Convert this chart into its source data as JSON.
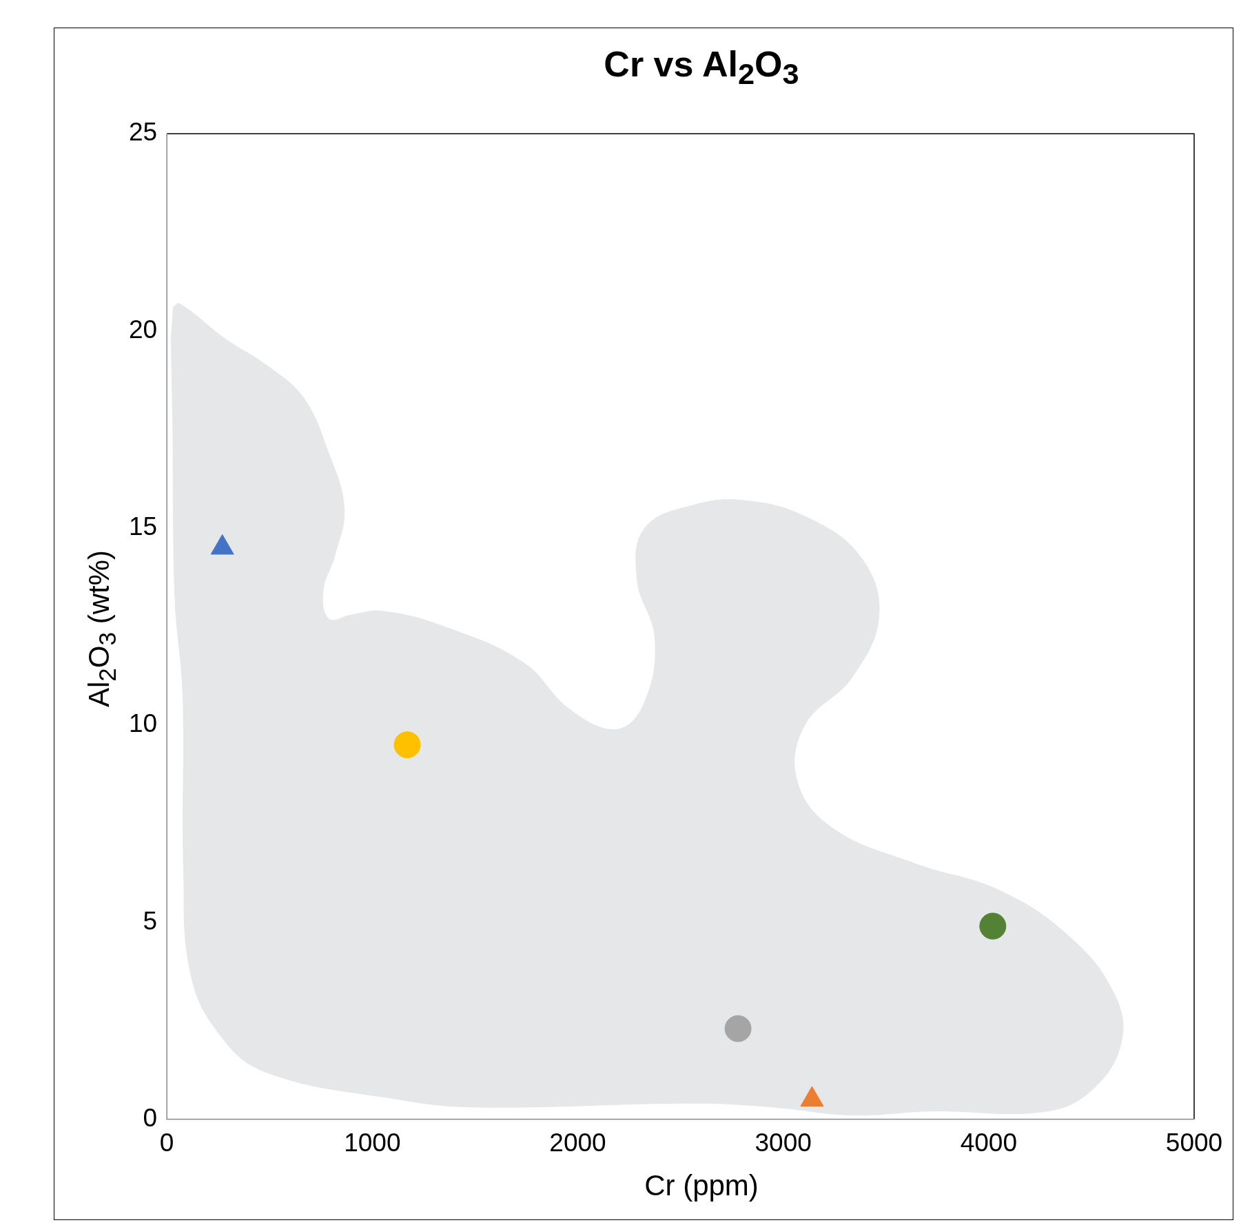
{
  "chart_data": {
    "type": "scatter",
    "title": "Cr vs Al$_{2}$O$_{3}$",
    "xlabel": "Cr (ppm)",
    "ylabel": "Al$_{2}$O$_{3}$ (wt%)",
    "xlim": [
      0,
      5000
    ],
    "xticks": [
      0,
      1000,
      2000,
      3000,
      4000,
      5000
    ],
    "ylim": [
      0,
      25
    ],
    "yticks": [
      0,
      5,
      10,
      15,
      20,
      25
    ],
    "grid": false,
    "legend": false,
    "series": [
      {
        "type": "area",
        "color": "#e6e7e8",
        "x": [
          30,
          61,
          286,
          495,
          667,
          789,
          865,
          819,
          762,
          789,
          896,
          1048,
          1353,
          1734,
          1963,
          2191,
          2325,
          2374,
          2287,
          2325,
          2572,
          2820,
          3106,
          3373,
          3468,
          3335,
          3106,
          3068,
          3239,
          3639,
          4059,
          4402,
          4611,
          4649,
          4516,
          4287,
          3716,
          3335,
          2953,
          2572,
          1505,
          1124,
          476,
          248,
          114,
          80,
          76,
          38,
          27,
          19
        ],
        "values": [
          20.6,
          20.7,
          19.8,
          19.1,
          18.3,
          16.9,
          15.5,
          14.3,
          13.4,
          12.7,
          12.8,
          12.9,
          12.5,
          11.6,
          10.4,
          9.9,
          10.6,
          12.2,
          13.7,
          15.0,
          15.6,
          15.7,
          15.3,
          14.3,
          12.8,
          11.2,
          10.0,
          8.6,
          7.4,
          6.5,
          5.8,
          4.6,
          3.2,
          2.0,
          0.8,
          0.2,
          0.2,
          0.1,
          0.3,
          0.4,
          0.3,
          0.5,
          1.2,
          2.2,
          3.7,
          6.3,
          10.8,
          13.2,
          17.7,
          19.8
        ]
      },
      {
        "marker": "triangle",
        "color": "#4472c4",
        "x": [
          270
        ],
        "values": [
          14.5
        ]
      },
      {
        "marker": "circle",
        "color": "#ffc000",
        "x": [
          1170
        ],
        "values": [
          9.5
        ]
      },
      {
        "marker": "circle",
        "color": "#548235",
        "x": [
          4020
        ],
        "values": [
          4.9
        ]
      },
      {
        "marker": "circle",
        "color": "#a5a5a5",
        "x": [
          2780
        ],
        "values": [
          2.3
        ]
      },
      {
        "marker": "triangle",
        "color": "#ed7d31",
        "x": [
          3140
        ],
        "values": [
          0.5
        ]
      }
    ]
  }
}
